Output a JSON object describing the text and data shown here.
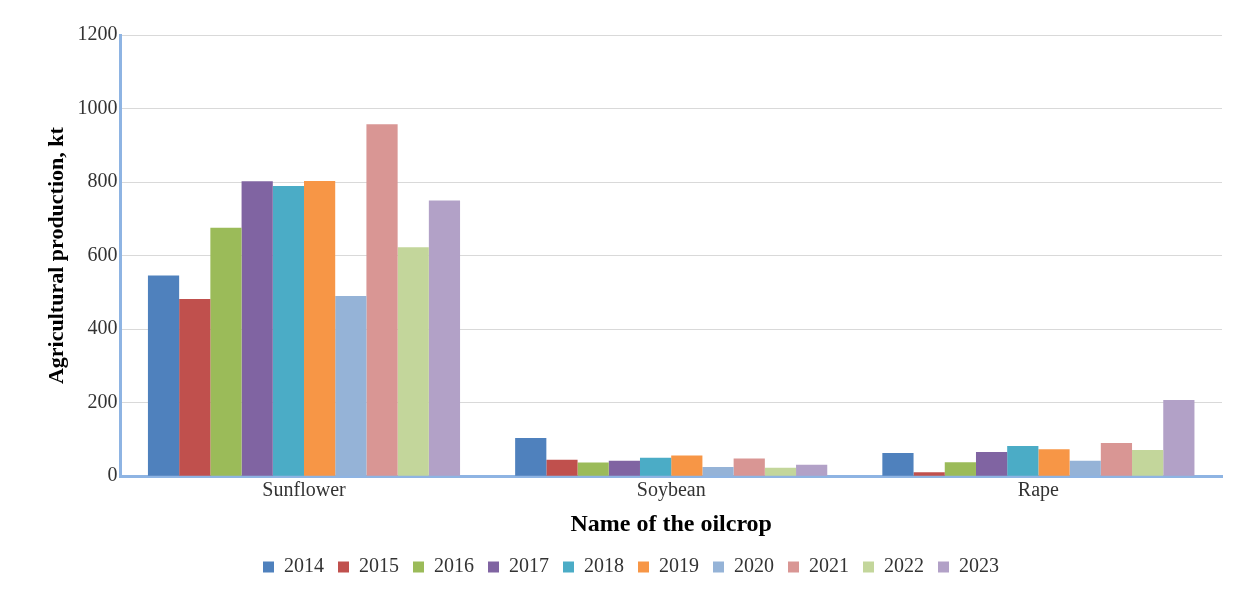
{
  "chart_data": {
    "type": "bar",
    "xlabel": "Name of the oilcrop",
    "ylabel": "Agricultural production, kt",
    "categories": [
      "Sunflower",
      "Soybean",
      "Rape"
    ],
    "series": [
      {
        "name": "2014",
        "color": "#4f81bd",
        "values": [
          546,
          104,
          63
        ]
      },
      {
        "name": "2015",
        "color": "#c0504d",
        "values": [
          482,
          45,
          11
        ]
      },
      {
        "name": "2016",
        "color": "#9bbb59",
        "values": [
          676,
          37,
          38
        ]
      },
      {
        "name": "2017",
        "color": "#8064a2",
        "values": [
          802,
          42,
          66
        ]
      },
      {
        "name": "2018",
        "color": "#4bacc6",
        "values": [
          789,
          50,
          82
        ]
      },
      {
        "name": "2019",
        "color": "#f79646",
        "values": [
          803,
          56,
          73
        ]
      },
      {
        "name": "2020",
        "color": "#95b3d7",
        "values": [
          490,
          25,
          42
        ]
      },
      {
        "name": "2021",
        "color": "#d99694",
        "values": [
          957,
          48,
          90
        ]
      },
      {
        "name": "2022",
        "color": "#c3d69b",
        "values": [
          623,
          23,
          71
        ]
      },
      {
        "name": "2023",
        "color": "#b2a1c7",
        "values": [
          750,
          31,
          207
        ]
      }
    ],
    "ylim": [
      0,
      1200
    ],
    "yticks": [
      0,
      200,
      400,
      600,
      800,
      1000,
      1200
    ],
    "grid": "y",
    "legend": "bottom"
  }
}
